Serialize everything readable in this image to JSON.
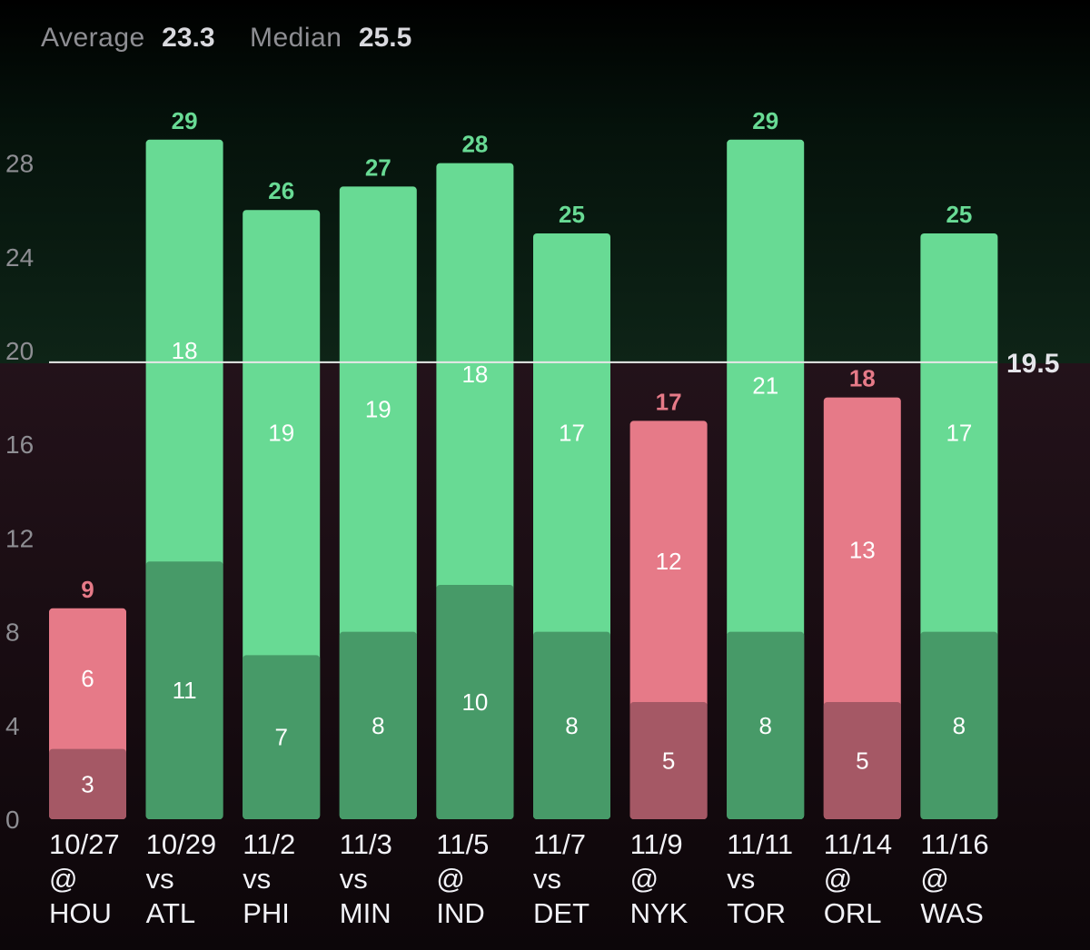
{
  "stats": {
    "average_label": "Average",
    "average_value": "23.3",
    "median_label": "Median",
    "median_value": "25.5"
  },
  "chart_data": {
    "type": "bar",
    "stacked": true,
    "categories": [
      [
        "10/27",
        "@",
        "HOU"
      ],
      [
        "10/29",
        "vs",
        "ATL"
      ],
      [
        "11/2",
        "vs",
        "PHI"
      ],
      [
        "11/3",
        "vs",
        "MIN"
      ],
      [
        "11/5",
        "@",
        "IND"
      ],
      [
        "11/7",
        "vs",
        "DET"
      ],
      [
        "11/9",
        "@",
        "NYK"
      ],
      [
        "11/11",
        "vs",
        "TOR"
      ],
      [
        "11/14",
        "@",
        "ORL"
      ],
      [
        "11/16",
        "@",
        "WAS"
      ]
    ],
    "series": [
      {
        "values": [
          3,
          11,
          7,
          8,
          10,
          8,
          5,
          8,
          5,
          8
        ]
      },
      {
        "values": [
          6,
          18,
          19,
          19,
          18,
          17,
          12,
          21,
          13,
          17
        ]
      }
    ],
    "totals": [
      9,
      29,
      26,
      27,
      28,
      25,
      17,
      29,
      18,
      25
    ],
    "reference_line": {
      "value": 19.5,
      "label": "19.5"
    },
    "y_ticks": [
      0,
      4,
      8,
      12,
      16,
      20,
      24,
      28
    ],
    "ylim": [
      0,
      28.9
    ],
    "colors": {
      "over_top": "#68da94",
      "over_bottom": "#479a68",
      "under_top": "#e67a88",
      "under_bottom": "#a55865",
      "over_label": "#68da94",
      "under_label": "#e67a88",
      "line": "#e8e8e8"
    },
    "grid": false
  }
}
